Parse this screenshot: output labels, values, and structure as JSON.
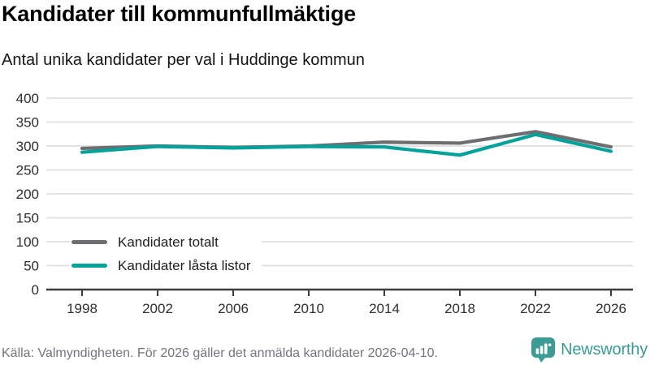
{
  "header": {
    "title": "Kandidater till kommunfullmäktige",
    "subtitle": "Antal unika kandidater per val i Huddinge kommun"
  },
  "chart_data": {
    "type": "line",
    "x": [
      1998,
      2002,
      2006,
      2010,
      2014,
      2018,
      2022,
      2026
    ],
    "series": [
      {
        "name": "Kandidater totalt",
        "color": "#6d6d72",
        "values": [
          295,
          300,
          297,
          300,
          308,
          306,
          330,
          298
        ]
      },
      {
        "name": "Kandidater låsta listor",
        "color": "#00a29a",
        "values": [
          287,
          299,
          296,
          299,
          298,
          281,
          324,
          289
        ]
      }
    ],
    "title": "Kandidater till kommunfullmäktige",
    "subtitle": "Antal unika kandidater per val i Huddinge kommun",
    "xlabel": "",
    "ylabel": "",
    "ylim": [
      0,
      400
    ],
    "ytick_step": 50,
    "grid": true,
    "gridline_color": "#e3e3e3",
    "axis_color": "#3d3d40",
    "legend_position": "inside-bottom-left"
  },
  "footer": {
    "source": "Källa: Valmyndigheten. För 2026 gäller det anmälda kandidater 2026-04-10.",
    "brand": "Newsworthy",
    "brand_color": "#3c9c95"
  }
}
